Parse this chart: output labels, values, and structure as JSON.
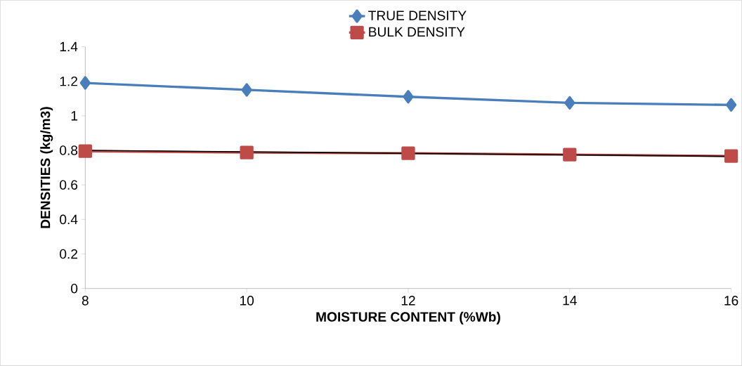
{
  "chart_data": {
    "type": "line",
    "xlabel": "MOISTURE CONTENT (%Wb)",
    "ylabel": "DENSITIES (kg/m3)",
    "x": [
      8,
      10,
      12,
      14,
      16
    ],
    "xlim": [
      8,
      16
    ],
    "xticks": [
      8,
      10,
      12,
      14,
      16
    ],
    "ylim": [
      0,
      1.4
    ],
    "yticks": [
      0,
      0.2,
      0.4,
      0.6,
      0.8,
      1,
      1.2,
      1.4
    ],
    "grid": false,
    "legend": "top",
    "series": [
      {
        "name": "TRUE DENSITY",
        "color": "#4a7ebb",
        "marker": "diamond",
        "values": [
          1.19,
          1.15,
          1.11,
          1.075,
          1.063
        ]
      },
      {
        "name": "BULK DENSITY",
        "color": "#be4b48",
        "marker": "square",
        "values": [
          0.795,
          0.787,
          0.783,
          0.775,
          0.767
        ]
      },
      {
        "type": "line",
        "color": "#000000",
        "marker": "none",
        "x": [
          8,
          16
        ],
        "values": [
          0.8,
          0.765
        ]
      }
    ]
  }
}
